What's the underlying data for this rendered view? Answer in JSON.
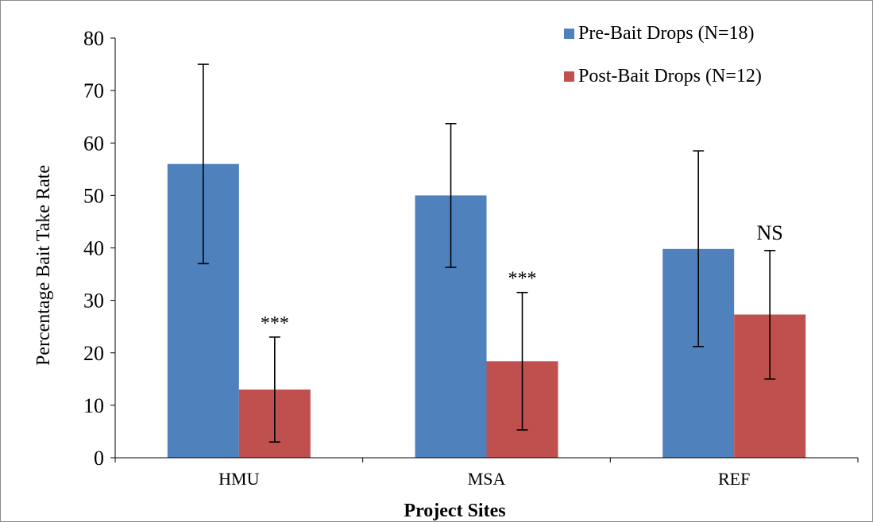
{
  "chart_data": {
    "type": "bar",
    "title": "",
    "xlabel": "Project Sites",
    "ylabel": "Percentage Bait Take Rate",
    "categories": [
      "HMU",
      "MSA",
      "REF"
    ],
    "ylim": [
      0,
      80
    ],
    "yticks": [
      0,
      10,
      20,
      30,
      40,
      50,
      60,
      70,
      80
    ],
    "grid": false,
    "legend_position": "top-right",
    "series": [
      {
        "name": "Pre-Bait Drops (N=18)",
        "color": "#4f81bd",
        "values": [
          56,
          50,
          39.8
        ],
        "error_low": [
          37,
          36.3,
          21.2
        ],
        "error_high": [
          75,
          63.7,
          58.5
        ]
      },
      {
        "name": "Post-Bait Drops (N=12)",
        "color": "#c0504d",
        "values": [
          13,
          18.4,
          27.3
        ],
        "error_low": [
          3,
          5.3,
          15
        ],
        "error_high": [
          23,
          31.5,
          39.5
        ]
      }
    ],
    "annotations": [
      {
        "category": "HMU",
        "series": 1,
        "text": "***"
      },
      {
        "category": "MSA",
        "series": 1,
        "text": "***"
      },
      {
        "category": "REF",
        "series": 1,
        "text": "NS"
      }
    ]
  }
}
